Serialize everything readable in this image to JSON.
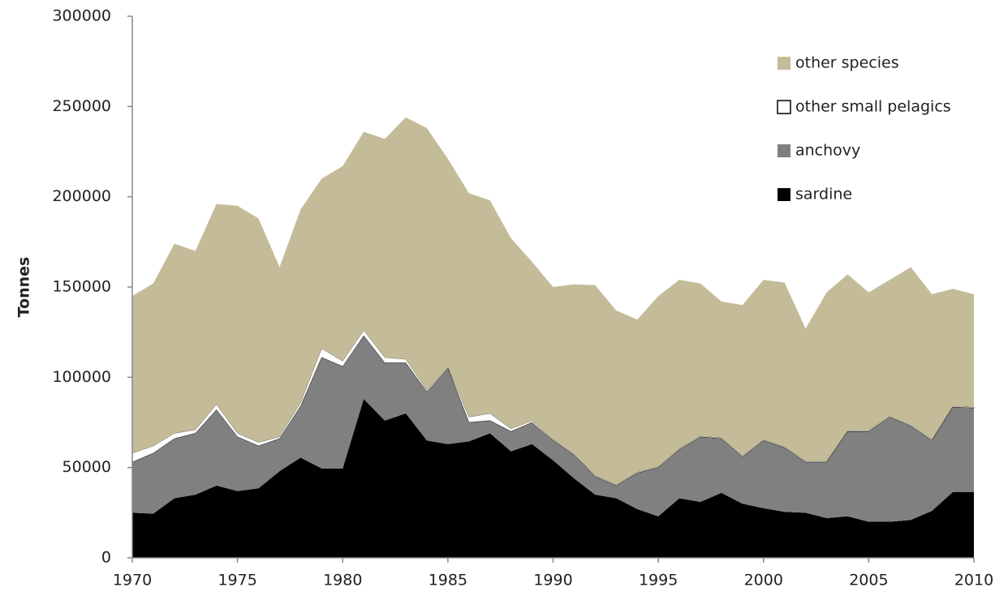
{
  "chart_data": {
    "type": "stacked-area",
    "y_label": "Tonnes",
    "x": [
      1970,
      1971,
      1972,
      1973,
      1974,
      1975,
      1976,
      1977,
      1978,
      1979,
      1980,
      1981,
      1982,
      1983,
      1984,
      1985,
      1986,
      1987,
      1988,
      1989,
      1990,
      1991,
      1992,
      1993,
      1994,
      1995,
      1996,
      1997,
      1998,
      1999,
      2000,
      2001,
      2002,
      2003,
      2004,
      2005,
      2006,
      2007,
      2008,
      2009,
      2010
    ],
    "xlim": [
      1970,
      2010
    ],
    "xticks": [
      1970,
      1975,
      1980,
      1985,
      1990,
      1995,
      2000,
      2005,
      2010
    ],
    "ylim": [
      0,
      300000
    ],
    "yticks": [
      0,
      50000,
      100000,
      150000,
      200000,
      250000,
      300000
    ],
    "legend": "upper-right",
    "series": [
      {
        "name": "sardine",
        "color": "#000000",
        "values": [
          25000,
          24500,
          33000,
          35000,
          40000,
          37000,
          38500,
          48000,
          55500,
          49500,
          49500,
          88000,
          76000,
          80000,
          65000,
          63000,
          64500,
          69000,
          59000,
          63000,
          54000,
          44000,
          35000,
          33000,
          27000,
          23000,
          33000,
          31000,
          36000,
          30000,
          27500,
          25500,
          25000,
          22000,
          23000,
          20000,
          20000,
          21000,
          26000,
          36500,
          36500
        ]
      },
      {
        "name": "anchovy",
        "color": "#808080",
        "values": [
          28000,
          33500,
          33000,
          34000,
          42000,
          30000,
          23500,
          18000,
          28500,
          61500,
          56500,
          35000,
          32000,
          28000,
          27000,
          42000,
          10500,
          7000,
          11000,
          12000,
          11000,
          13000,
          10000,
          7000,
          20000,
          27000,
          27000,
          36000,
          30000,
          26000,
          37500,
          35500,
          28000,
          31000,
          47000,
          50000,
          58000,
          52000,
          39000,
          47000,
          46500
        ]
      },
      {
        "name": "other small pelagics",
        "color": "#ffffff",
        "values": [
          5000,
          4000,
          3000,
          2000,
          3000,
          2000,
          2000,
          1000,
          2000,
          5000,
          3000,
          3000,
          3000,
          2000,
          1000,
          500,
          3000,
          4000,
          1500,
          1000,
          500,
          500,
          500,
          500,
          500,
          500,
          500,
          500,
          500,
          500,
          500,
          500,
          500,
          500,
          500,
          500,
          500,
          500,
          500,
          500,
          500
        ]
      },
      {
        "name": "other species",
        "color": "#c4bc98",
        "values": [
          87000,
          90000,
          105000,
          99000,
          111000,
          126000,
          124000,
          94000,
          107000,
          94000,
          108000,
          110000,
          121000,
          134000,
          145000,
          115500,
          124000,
          118000,
          105500,
          88000,
          84500,
          94000,
          105500,
          96500,
          84500,
          94500,
          93500,
          84500,
          75500,
          83500,
          88500,
          91000,
          73500,
          93500,
          86500,
          76500,
          75500,
          87500,
          80500,
          65000,
          62500
        ]
      }
    ]
  }
}
